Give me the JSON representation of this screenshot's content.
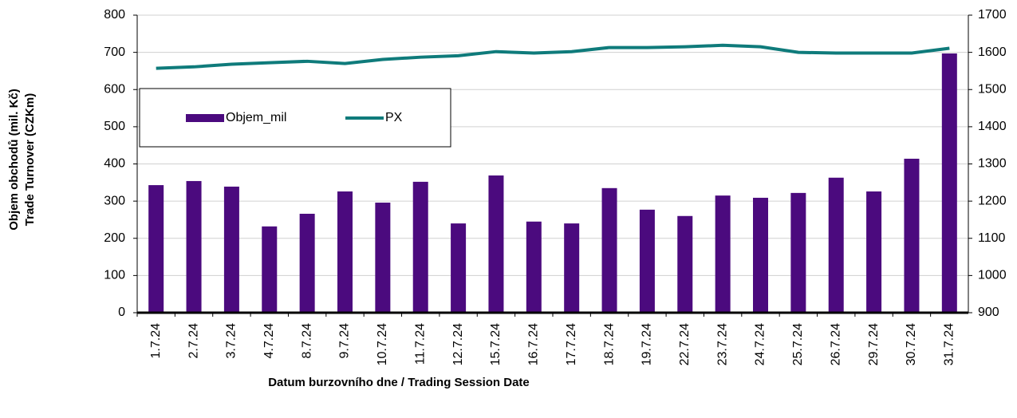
{
  "chart_data": {
    "type": "bar_line",
    "categories": [
      "1.7.24",
      "2.7.24",
      "3.7.24",
      "4.7.24",
      "8.7.24",
      "9.7.24",
      "10.7.24",
      "11.7.24",
      "12.7.24",
      "15.7.24",
      "16.7.24",
      "17.7.24",
      "18.7.24",
      "19.7.24",
      "22.7.24",
      "23.7.24",
      "24.7.24",
      "25.7.24",
      "26.7.24",
      "29.7.24",
      "30.7.24",
      "31.7.24"
    ],
    "series": [
      {
        "name": "Objem_mil",
        "type": "bar",
        "color": "#4b0a7e",
        "axis": "y",
        "values": [
          343,
          354,
          339,
          232,
          266,
          326,
          296,
          352,
          240,
          369,
          245,
          240,
          335,
          277,
          260,
          315,
          309,
          322,
          363,
          326,
          414,
          697
        ]
      },
      {
        "name": "PX",
        "type": "line",
        "color": "#0f7b7b",
        "axis": "y2",
        "values": [
          1557,
          1561,
          1568,
          1572,
          1576,
          1570,
          1581,
          1587,
          1591,
          1602,
          1598,
          1602,
          1613,
          1613,
          1615,
          1619,
          1615,
          1600,
          1598,
          1598,
          1598,
          1611
        ]
      }
    ],
    "ylabel": [
      "Objem obchodů (mil. Kč)",
      "Trade Turnover (CZKm)"
    ],
    "xlabel": "Datum burzovního dne / Trading Session Date",
    "ylim": [
      0,
      800
    ],
    "yticks": [
      0,
      100,
      200,
      300,
      400,
      500,
      600,
      700,
      800
    ],
    "y2lim": [
      900,
      1700
    ],
    "y2ticks": [
      900,
      1000,
      1100,
      1200,
      1300,
      1400,
      1500,
      1600,
      1700
    ],
    "grid": true
  }
}
